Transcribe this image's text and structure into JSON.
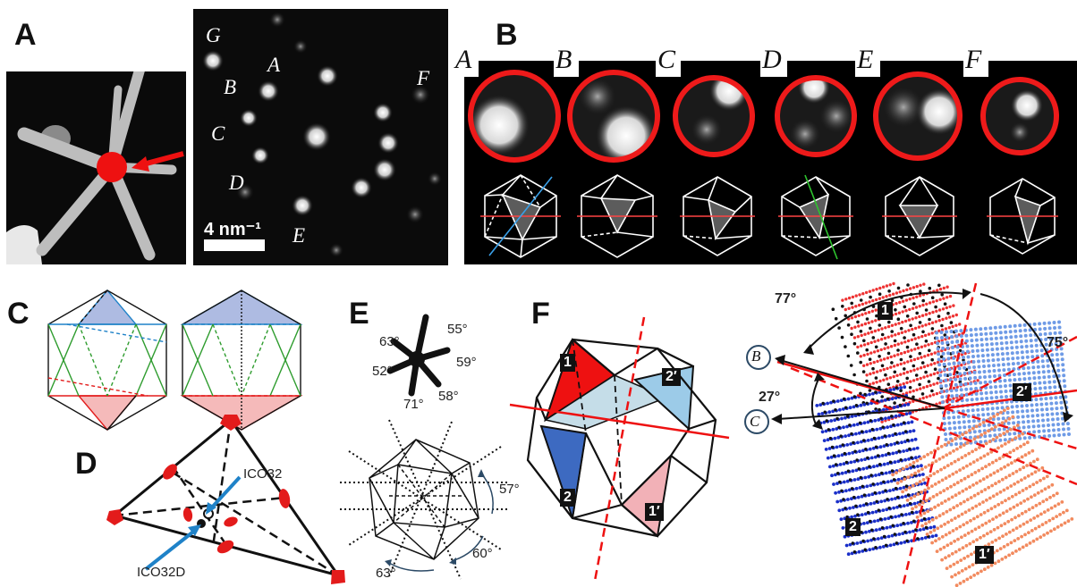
{
  "panels": {
    "A": {
      "letter": "A",
      "scale_bar": "4 nm⁻¹",
      "spot_labels": [
        "G",
        "B",
        "A",
        "C",
        "D",
        "E",
        "F"
      ]
    },
    "B": {
      "letter": "B",
      "column_labels": [
        "A",
        "B",
        "C",
        "D",
        "E",
        "F"
      ]
    },
    "C": {
      "letter": "C"
    },
    "D": {
      "letter": "D",
      "label_ico32": "ICO32",
      "label_ico32d": "ICO32D"
    },
    "E": {
      "letter": "E",
      "star_angles": [
        "63°",
        "55°",
        "52°",
        "59°",
        "71°",
        "58°"
      ],
      "ico_angles": [
        "57°",
        "60°",
        "63°"
      ]
    },
    "F": {
      "letter": "F",
      "facets": [
        "1",
        "2′",
        "2",
        "1′"
      ],
      "right_badges": [
        "1",
        "2′",
        "2",
        "1′"
      ],
      "angles": [
        "77°",
        "75°",
        "27°"
      ],
      "directions": [
        "B",
        "C"
      ]
    }
  },
  "colors": {
    "red": "#e31b1b",
    "blue_fill": "#7a8fd0",
    "light_blue": "#9cc9e6",
    "pink": "#f2b1b1",
    "accent_blue": "#1f82c8",
    "green": "#2e9c2e"
  }
}
